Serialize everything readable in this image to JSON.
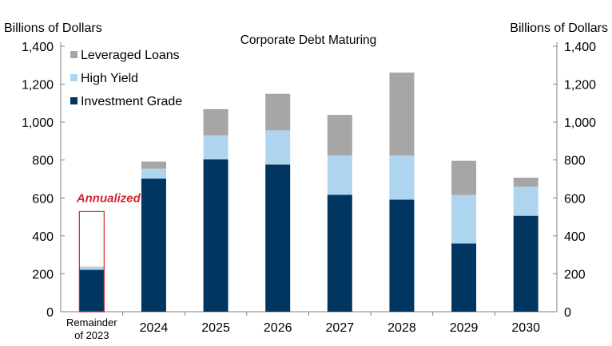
{
  "chart_data": {
    "type": "bar",
    "stacked": true,
    "title": "Corporate  Debt Maturing",
    "ylabel_left": "Billions of Dollars",
    "ylabel_right": "Billions of Dollars",
    "ylim": [
      0,
      1400
    ],
    "yticks": [
      0,
      200,
      400,
      600,
      800,
      1000,
      1200,
      1400
    ],
    "ytick_labels": [
      "0",
      "200",
      "400",
      "600",
      "800",
      "1,000",
      "1,200",
      "1,400"
    ],
    "categories": [
      "Remainder of 2023",
      "2024",
      "2025",
      "2026",
      "2027",
      "2028",
      "2029",
      "2030"
    ],
    "series": [
      {
        "name": "Investment Grade",
        "color": "#003660",
        "values": [
          221,
          702,
          803,
          776,
          617,
          591,
          360,
          506
        ]
      },
      {
        "name": "High Yield",
        "color": "#aed4f0",
        "values": [
          14,
          52,
          127,
          181,
          207,
          233,
          256,
          153
        ]
      },
      {
        "name": "Leveraged Loans",
        "color": "#a6a6a6",
        "values": [
          2,
          38,
          138,
          192,
          214,
          437,
          180,
          48
        ]
      }
    ],
    "legend_order": [
      "Leveraged Loans",
      "High Yield",
      "Investment Grade"
    ],
    "legend_position": "top-left",
    "annotation": {
      "text": "Annualized",
      "category": "Remainder of 2023",
      "value": 528,
      "color": "#d0262e"
    },
    "grid": false
  }
}
